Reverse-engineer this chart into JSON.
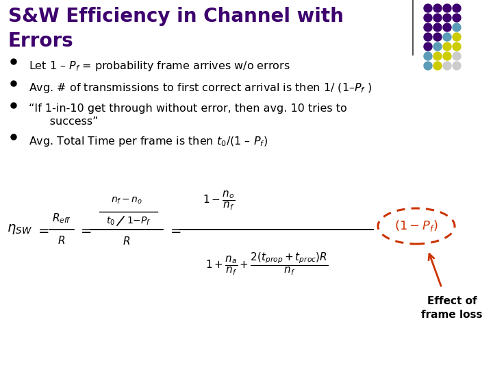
{
  "title_line1": "S&W Efficiency in Channel with",
  "title_line2": "Errors",
  "title_color": "#3D006E",
  "bg_color": "#FFFFFF",
  "bullet_color": "#000000",
  "text_color": "#000000",
  "bullet_points": [
    "Let 1 – $P_f$ = probability frame arrives w/o errors",
    "Avg. # of transmissions to first correct arrival is then 1/ (1–$P_f$ )",
    "“If 1-in-10 get through without error, then avg. 10 tries to\n      success”",
    "Avg. Total Time per frame is then $t_0$/(1 – $P_f$)"
  ],
  "annotation": "Effect of\nframe loss",
  "annotation_color": "#CC3300",
  "ellipse_color": "#CC3300",
  "dot_grid": [
    [
      "#3D006E",
      "#3D006E",
      "#3D006E",
      "#3D006E"
    ],
    [
      "#3D006E",
      "#3D006E",
      "#3D006E",
      "#3D006E"
    ],
    [
      "#3D006E",
      "#3D006E",
      "#3D006E",
      "#5B9CB8"
    ],
    [
      "#3D006E",
      "#3D006E",
      "#5B9CB8",
      "#CCCC00"
    ],
    [
      "#3D006E",
      "#5B9CB8",
      "#CCCC00",
      "#CCCC00"
    ],
    [
      "#5B9CB8",
      "#CCCC00",
      "#CCCC00",
      "#CCCCCC"
    ],
    [
      "#5B9CB8",
      "#CCCC00",
      "#CCCCCC",
      "#CCCCCC"
    ]
  ],
  "figsize": [
    7.2,
    5.4
  ],
  "dpi": 100
}
